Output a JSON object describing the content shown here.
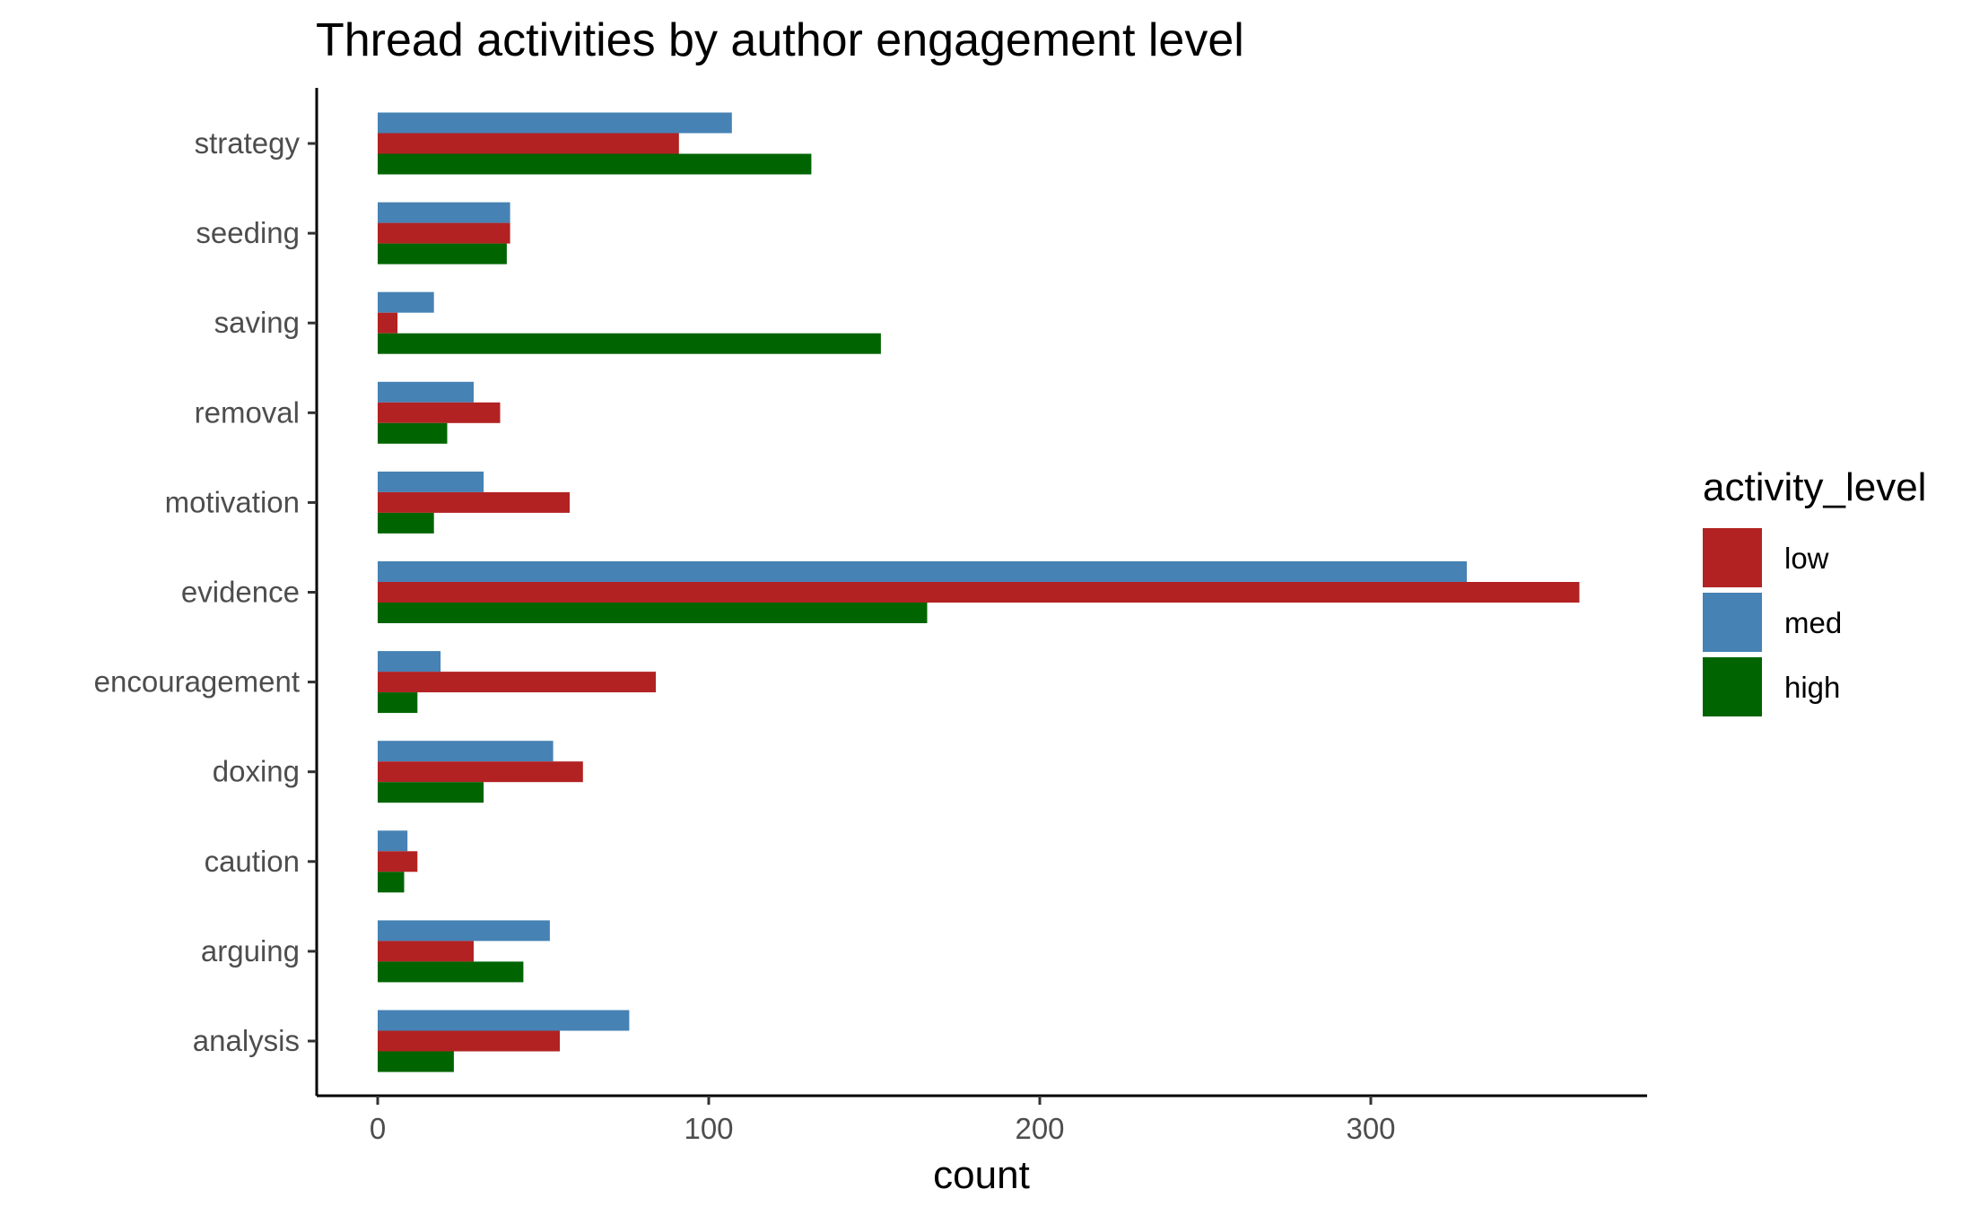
{
  "chart_data": {
    "type": "bar",
    "orientation": "horizontal",
    "title": "Thread activities by author engagement level",
    "xlabel": "count",
    "ylabel": "",
    "xlim": [
      -18,
      380
    ],
    "x_ticks": [
      0,
      100,
      200,
      300
    ],
    "grid": false,
    "categories": [
      "analysis",
      "arguing",
      "caution",
      "doxing",
      "encouragement",
      "evidence",
      "motivation",
      "removal",
      "saving",
      "seeding",
      "strategy"
    ],
    "series": [
      {
        "name": "low",
        "color": "#b22222",
        "values": [
          55,
          29,
          12,
          62,
          84,
          363,
          58,
          37,
          6,
          40,
          91
        ]
      },
      {
        "name": "med",
        "color": "#4682b4",
        "values": [
          76,
          52,
          9,
          53,
          19,
          329,
          32,
          29,
          17,
          40,
          107
        ]
      },
      {
        "name": "high",
        "color": "#006400",
        "values": [
          23,
          44,
          8,
          32,
          12,
          166,
          17,
          21,
          152,
          39,
          131
        ]
      }
    ],
    "legend": {
      "title": "activity_level",
      "position": "right",
      "items": [
        "low",
        "med",
        "high"
      ]
    }
  }
}
